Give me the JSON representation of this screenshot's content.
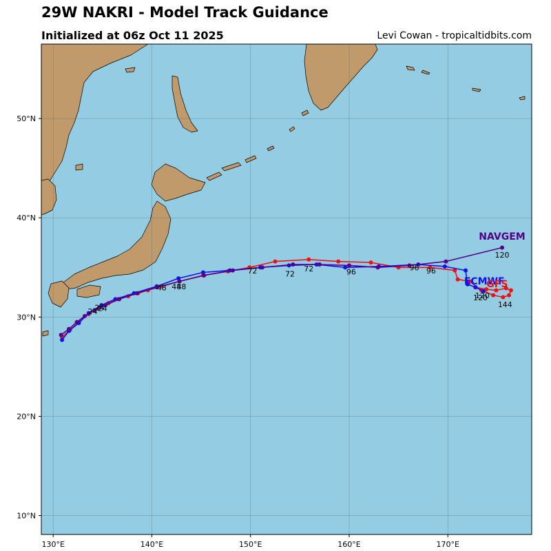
{
  "header": {
    "title": "29W NAKRI - Model Track Guidance",
    "subtitle": "Initialized at 06z Oct 11 2025",
    "credit": "Levi Cowan - tropicaltidbits.com"
  },
  "colors": {
    "ocean": "#94cde3",
    "land": "#c19a6b",
    "coast": "#000000",
    "grid": "#4a6670"
  },
  "chart_data": {
    "type": "map-tracks",
    "xlim": [
      128.8,
      178.5
    ],
    "ylim": [
      8.1,
      57.5
    ],
    "lon_ticks": [
      {
        "value": 130,
        "label": "130°E"
      },
      {
        "value": 140,
        "label": "140°E"
      },
      {
        "value": 150,
        "label": "150°E"
      },
      {
        "value": 160,
        "label": "160°E"
      },
      {
        "value": 170,
        "label": "170°E"
      }
    ],
    "lat_ticks": [
      {
        "value": 10,
        "label": "10°N"
      },
      {
        "value": 20,
        "label": "20°N"
      },
      {
        "value": 30,
        "label": "30°N"
      },
      {
        "value": 40,
        "label": "40°N"
      },
      {
        "value": 50,
        "label": "50°N"
      }
    ],
    "series": [
      {
        "name": "GFS",
        "color": "#ee1111",
        "points": [
          [
            130.9,
            28.0
          ],
          [
            131.7,
            28.7
          ],
          [
            132.6,
            29.5
          ],
          [
            133.6,
            30.3
          ],
          [
            134.6,
            30.9
          ],
          [
            135.6,
            31.4
          ],
          [
            136.6,
            31.8
          ],
          [
            137.6,
            32.1
          ],
          [
            138.6,
            32.4
          ],
          [
            139.6,
            32.7
          ],
          [
            141.0,
            33.1
          ],
          [
            142.8,
            33.6
          ],
          [
            145.2,
            34.2
          ],
          [
            147.7,
            34.6
          ],
          [
            149.9,
            35.0
          ],
          [
            152.5,
            35.6
          ],
          [
            155.9,
            35.8
          ],
          [
            158.9,
            35.6
          ],
          [
            162.2,
            35.5
          ],
          [
            165.0,
            35.0
          ],
          [
            168.2,
            35.0
          ],
          [
            170.7,
            34.7
          ],
          [
            171.0,
            33.8
          ],
          [
            172.2,
            33.6
          ],
          [
            173.4,
            32.7
          ],
          [
            174.6,
            32.2
          ],
          [
            175.6,
            32.0
          ],
          [
            176.2,
            32.2
          ],
          [
            176.4,
            32.7
          ],
          [
            175.9,
            32.9
          ],
          [
            174.9,
            32.7
          ],
          [
            173.9,
            32.8
          ],
          [
            172.8,
            33.0
          ]
        ],
        "hour_labels": [
          {
            "text": "24",
            "lon": 134.0,
            "lat": 30.3
          },
          {
            "text": "48",
            "lon": 141.0,
            "lat": 32.7
          },
          {
            "text": "72",
            "lon": 150.2,
            "lat": 34.4
          },
          {
            "text": "96",
            "lon": 168.3,
            "lat": 34.4
          },
          {
            "text": "120",
            "lon": 173.5,
            "lat": 31.9
          },
          {
            "text": "144",
            "lon": 175.8,
            "lat": 31.0
          }
        ]
      },
      {
        "name": "ECMWF",
        "color": "#1111ee",
        "points": [
          [
            130.9,
            27.7
          ],
          [
            131.6,
            28.6
          ],
          [
            132.6,
            29.4
          ],
          [
            133.6,
            30.4
          ],
          [
            134.9,
            31.2
          ],
          [
            136.3,
            31.8
          ],
          [
            138.2,
            32.4
          ],
          [
            140.5,
            33.1
          ],
          [
            142.7,
            33.9
          ],
          [
            145.2,
            34.5
          ],
          [
            147.9,
            34.7
          ],
          [
            151.0,
            35.0
          ],
          [
            153.9,
            35.2
          ],
          [
            156.7,
            35.3
          ],
          [
            159.6,
            35.0
          ],
          [
            163.0,
            35.1
          ],
          [
            167.0,
            35.3
          ],
          [
            169.7,
            35.1
          ],
          [
            171.8,
            34.7
          ],
          [
            172.0,
            33.3
          ],
          [
            172.8,
            33.0
          ],
          [
            173.6,
            32.6
          ]
        ],
        "hour_labels": [
          {
            "text": "24",
            "lon": 135.0,
            "lat": 30.6
          },
          {
            "text": "48",
            "lon": 143.0,
            "lat": 32.8
          },
          {
            "text": "72",
            "lon": 154.0,
            "lat": 34.1
          },
          {
            "text": "96",
            "lon": 160.2,
            "lat": 34.3
          },
          {
            "text": "120",
            "lon": 173.3,
            "lat": 31.7
          }
        ]
      },
      {
        "name": "NAVGEM",
        "color": "#55008a",
        "points": [
          [
            130.8,
            28.2
          ],
          [
            131.6,
            28.8
          ],
          [
            132.4,
            29.5
          ],
          [
            133.2,
            30.1
          ],
          [
            134.2,
            30.7
          ],
          [
            135.3,
            31.2
          ],
          [
            136.7,
            31.8
          ],
          [
            138.5,
            32.4
          ],
          [
            140.5,
            33.0
          ],
          [
            142.8,
            33.6
          ],
          [
            145.3,
            34.2
          ],
          [
            148.2,
            34.7
          ],
          [
            151.2,
            35.0
          ],
          [
            154.3,
            35.3
          ],
          [
            157.0,
            35.3
          ],
          [
            160.0,
            35.2
          ],
          [
            162.9,
            35.0
          ],
          [
            166.1,
            35.2
          ],
          [
            169.8,
            35.6
          ],
          [
            175.5,
            37.0
          ]
        ],
        "hour_labels": [
          {
            "text": "24",
            "lon": 134.7,
            "lat": 30.7
          },
          {
            "text": "48",
            "lon": 142.5,
            "lat": 32.8
          },
          {
            "text": "72",
            "lon": 155.9,
            "lat": 34.6
          },
          {
            "text": "96",
            "lon": 166.6,
            "lat": 34.7
          },
          {
            "text": "120",
            "lon": 175.5,
            "lat": 36.0
          }
        ]
      }
    ],
    "model_labels": [
      {
        "text": "NAVGEM",
        "color": "#55008a",
        "lon": 175.5,
        "lat": 37.8
      },
      {
        "text": "ECMWF",
        "color": "#1111ee",
        "lon": 173.7,
        "lat": 33.3
      },
      {
        "text": "GFS",
        "color": "#ee1111",
        "lon": 175.0,
        "lat": 33.0
      }
    ]
  }
}
